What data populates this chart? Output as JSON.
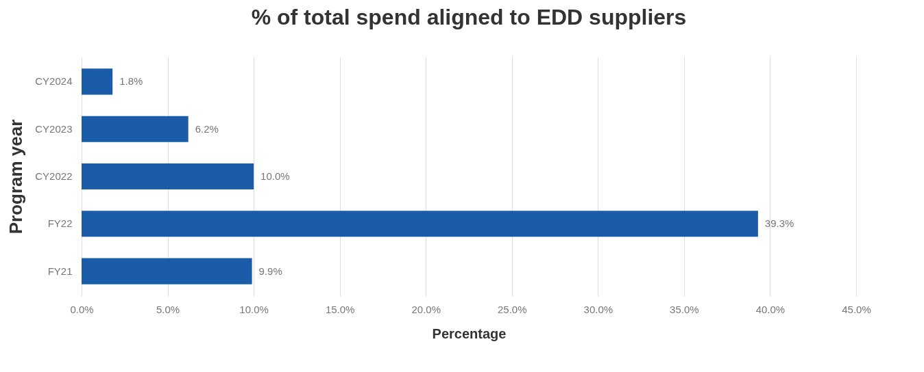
{
  "chart_data": {
    "type": "bar",
    "orientation": "horizontal",
    "title": "% of total spend aligned to EDD suppliers",
    "xlabel": "Percentage",
    "ylabel": "Program year",
    "categories": [
      "CY2024",
      "CY2023",
      "CY2022",
      "FY22",
      "FY21"
    ],
    "values": [
      1.8,
      6.2,
      10.0,
      39.3,
      9.9
    ],
    "value_labels": [
      "1.8%",
      "6.2%",
      "10.0%",
      "39.3%",
      "9.9%"
    ],
    "color": "#1a5ca8",
    "xlim": [
      0,
      45
    ],
    "xticks": [
      {
        "value": 0,
        "label": "0.0%"
      },
      {
        "value": 5,
        "label": "5.0%"
      },
      {
        "value": 10,
        "label": "10.0%"
      },
      {
        "value": 15,
        "label": "15.0%"
      },
      {
        "value": 20,
        "label": "20.0%"
      },
      {
        "value": 25,
        "label": "25.0%"
      },
      {
        "value": 30,
        "label": "30.0%"
      },
      {
        "value": 35,
        "label": "35.0%"
      },
      {
        "value": 40,
        "label": "40.0%"
      },
      {
        "value": 45,
        "label": "45.0%"
      }
    ],
    "grid": "x"
  }
}
